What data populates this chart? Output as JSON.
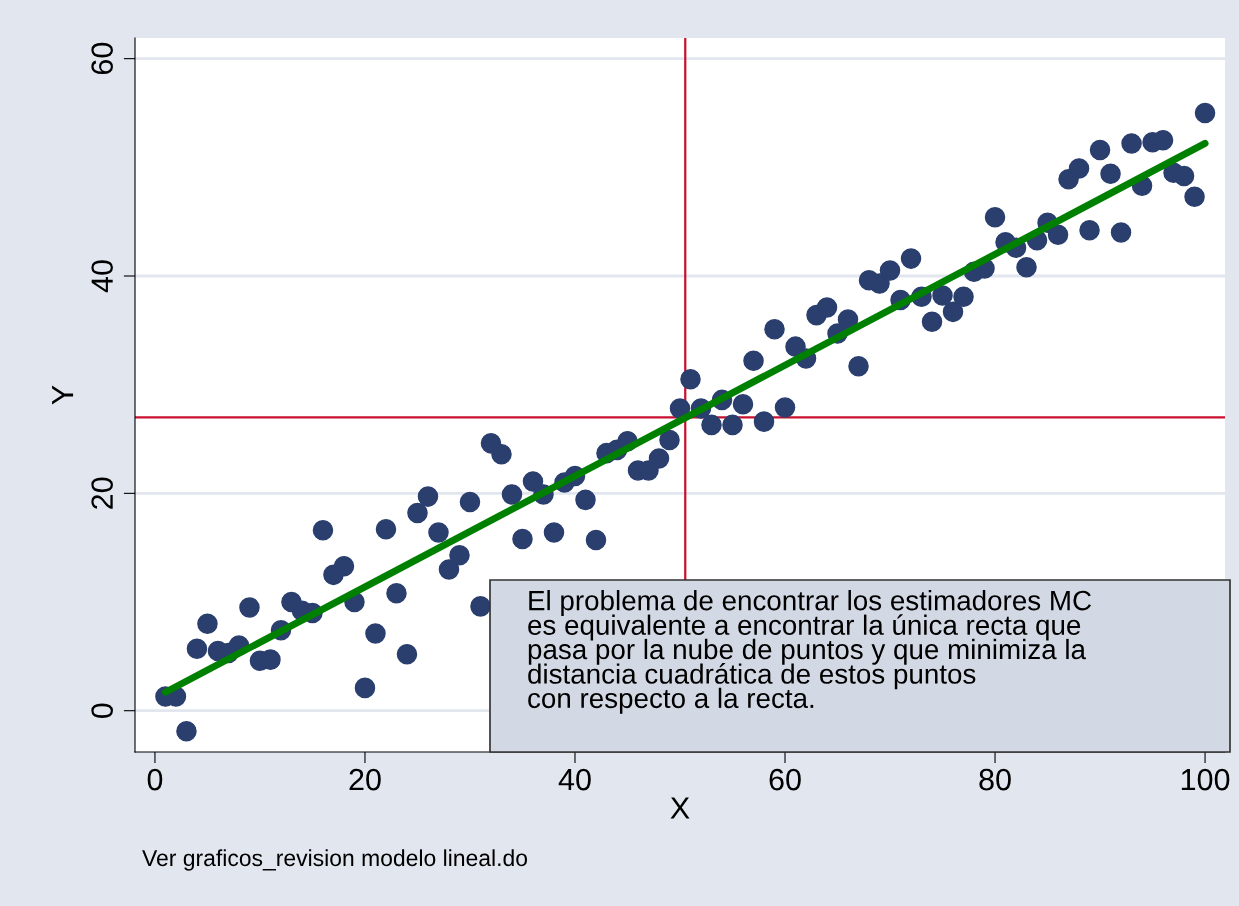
{
  "chart_data": {
    "type": "scatter",
    "xlabel": "X",
    "ylabel": "Y",
    "marker": "none",
    "xlim": [
      -1.9,
      101.9
    ],
    "ylim": [
      -3.8,
      61.9
    ],
    "xticks": [
      0,
      20,
      40,
      60,
      80,
      100
    ],
    "yticks": [
      0,
      20,
      40,
      60
    ],
    "grid": "y",
    "legend": false,
    "series": [
      {
        "marker": "circle",
        "color": "#2a3f6e",
        "x": [
          1,
          2,
          3,
          4,
          5,
          6,
          7,
          8,
          9,
          10,
          11,
          12,
          13,
          14,
          15,
          16,
          17,
          18,
          19,
          20,
          21,
          22,
          23,
          24,
          25,
          26,
          27,
          28,
          29,
          30,
          31,
          32,
          33,
          34,
          35,
          36,
          37,
          38,
          39,
          40,
          41,
          42,
          43,
          44,
          45,
          46,
          47,
          48,
          49,
          50,
          51,
          52,
          53,
          54,
          55,
          56,
          57,
          58,
          59,
          60,
          61,
          62,
          63,
          64,
          65,
          66,
          67,
          68,
          69,
          70,
          71,
          72,
          73,
          74,
          75,
          76,
          77,
          78,
          79,
          80,
          81,
          82,
          83,
          84,
          85,
          86,
          87,
          88,
          89,
          90,
          91,
          92,
          93,
          94,
          95,
          96,
          97,
          98,
          99,
          100
        ],
        "values": [
          1.3,
          1.3,
          -1.9,
          5.7,
          8.0,
          5.5,
          5.3,
          6.0,
          9.5,
          4.6,
          4.7,
          7.4,
          10.0,
          9.2,
          9.0,
          16.6,
          12.5,
          13.3,
          10.0,
          2.1,
          7.1,
          16.7,
          10.8,
          5.2,
          18.2,
          19.7,
          16.4,
          13.0,
          14.3,
          19.2,
          9.6,
          24.6,
          23.6,
          19.9,
          15.8,
          21.1,
          19.9,
          16.4,
          21.0,
          21.6,
          19.4,
          15.7,
          23.7,
          24.0,
          24.8,
          22.1,
          22.1,
          23.2,
          24.9,
          27.8,
          30.5,
          27.8,
          26.3,
          28.6,
          26.3,
          28.2,
          32.2,
          26.6,
          35.1,
          27.9,
          33.5,
          32.4,
          36.4,
          37.1,
          34.7,
          36.0,
          31.7,
          39.6,
          39.3,
          40.5,
          37.8,
          41.6,
          38.1,
          35.8,
          38.2,
          36.7,
          38.1,
          40.4,
          40.7,
          45.4,
          43.1,
          42.6,
          40.8,
          43.3,
          44.9,
          43.8,
          48.9,
          49.9,
          44.2,
          51.6,
          49.4,
          44.0,
          52.2,
          48.3,
          52.3,
          52.5,
          49.5,
          49.2,
          47.3,
          55.0
        ]
      },
      {
        "type": "line",
        "color": "#008000",
        "x": [
          1,
          100
        ],
        "values": [
          1.7,
          52.2
        ]
      }
    ],
    "ref_lines": [
      {
        "axis": "x",
        "value": 50.5,
        "color": "#c8102e"
      },
      {
        "axis": "y",
        "value": 27.0,
        "color": "#c8102e"
      }
    ],
    "annotations": [
      "El problema de encontrar los estimadores MC\nes equivalente a encontrar la única recta que\npasa por la nube de puntos y que minimiza la\ndistancia cuadrática de estos puntos\ncon respecto a la recta.",
      "Ver graficos_revision modelo lineal.do"
    ]
  }
}
